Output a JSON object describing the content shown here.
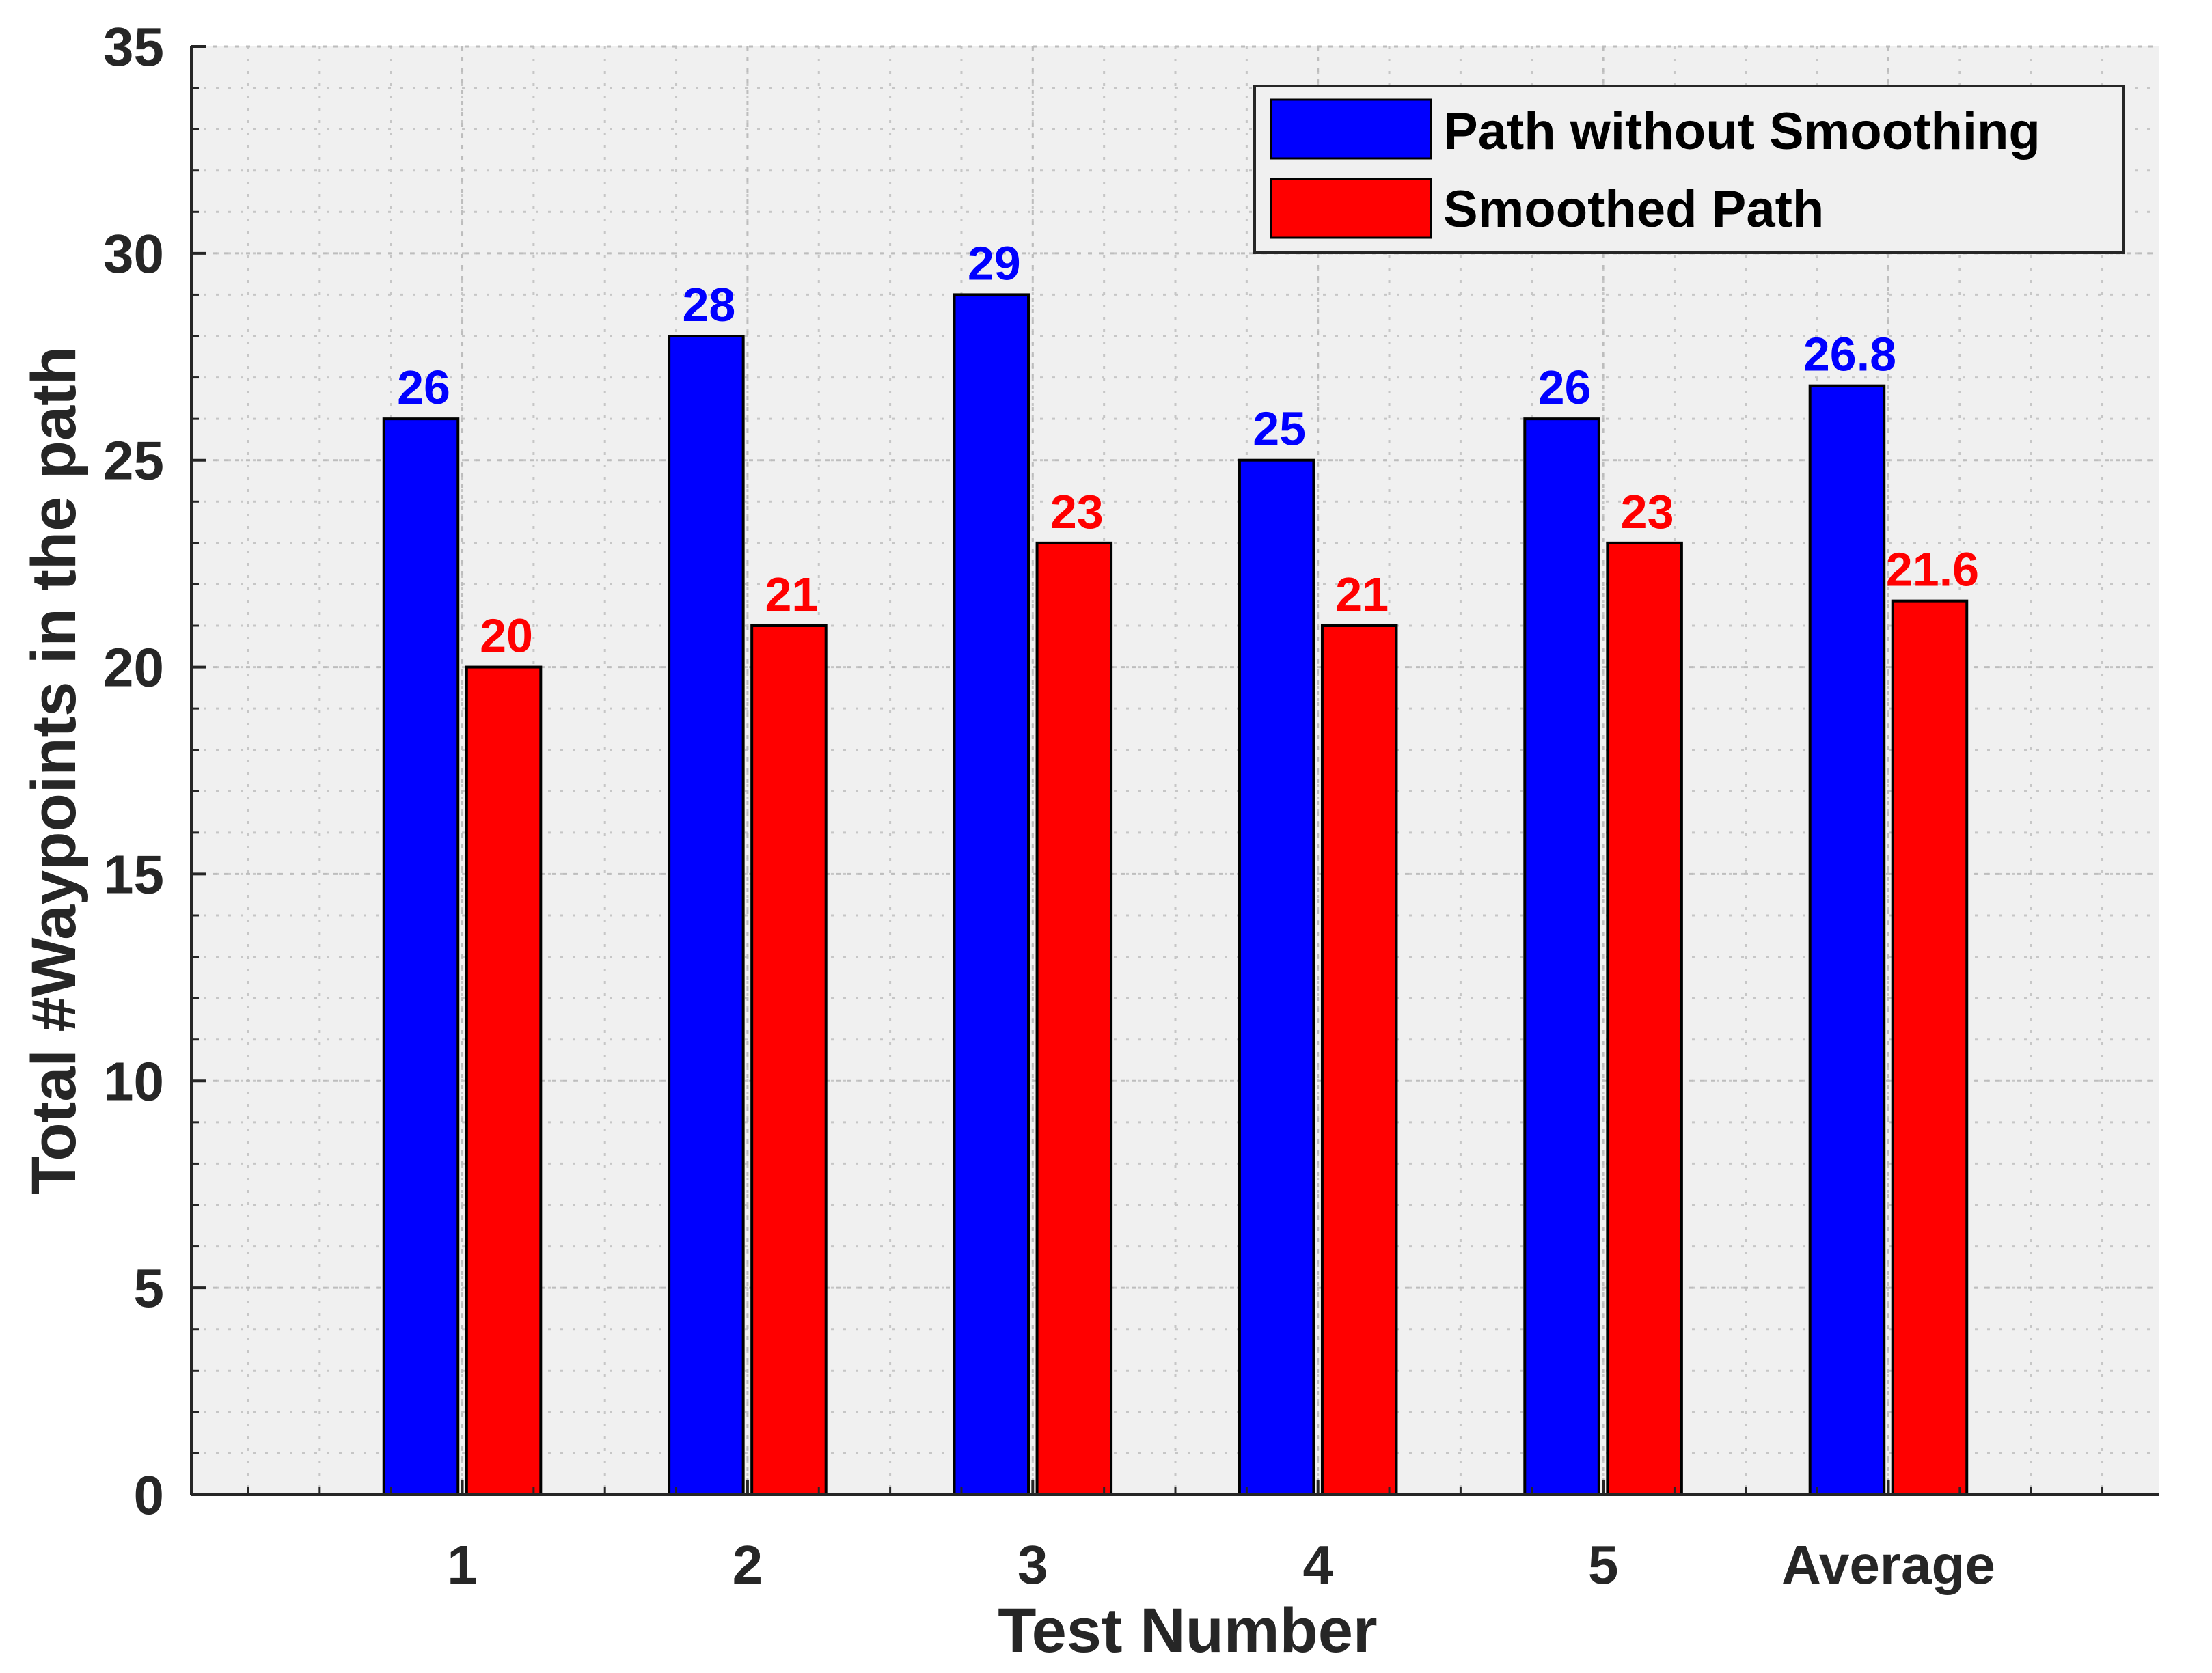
{
  "chart_data": {
    "type": "bar",
    "title": "",
    "xlabel": "Test Number",
    "ylabel": "Total #Waypoints in the path",
    "categories": [
      "1",
      "2",
      "3",
      "4",
      "5",
      "Average"
    ],
    "series": [
      {
        "name": "Path without Smoothing",
        "color": "#0000ff",
        "values": [
          26,
          28,
          29,
          25,
          26,
          26.8
        ],
        "labels": [
          "26",
          "28",
          "29",
          "25",
          "26",
          "26.8"
        ]
      },
      {
        "name": "Smoothed Path",
        "color": "#ff0000",
        "values": [
          20,
          21,
          23,
          21,
          23,
          21.6
        ],
        "labels": [
          "20",
          "21",
          "23",
          "21",
          "23",
          "21.6"
        ]
      }
    ],
    "ylim": [
      0,
      35
    ],
    "yticks": [
      0,
      5,
      10,
      15,
      20,
      25,
      30,
      35
    ],
    "yminor_step": 1,
    "grid": true,
    "legend_position": "top-right",
    "plot_background": "#f0f0f0",
    "axis_color": "#262626"
  }
}
